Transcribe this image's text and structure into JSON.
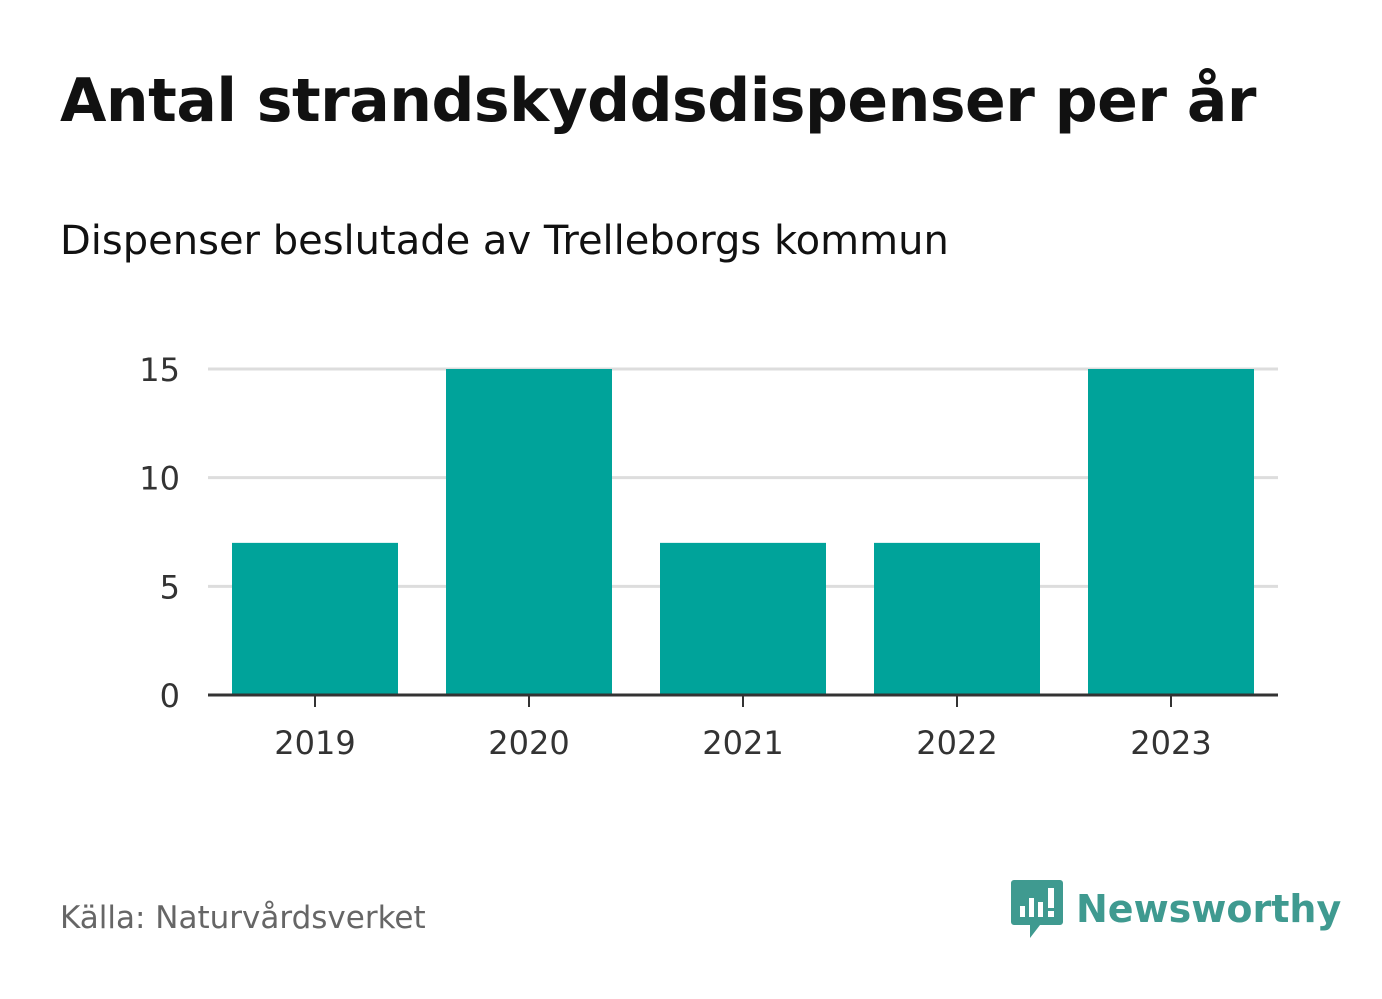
{
  "header": {
    "title": "Antal strandskyddsdispenser per år",
    "subtitle": "Dispenser beslutade av Trelleborgs kommun"
  },
  "footer": {
    "source": "Källa: Naturvårdsverket",
    "brand": "Newsworthy"
  },
  "colors": {
    "bar": "#00a39a",
    "grid": "#dddddd",
    "axis": "#333333",
    "brand": "#3f9a90"
  },
  "chart_data": {
    "type": "bar",
    "title": "Antal strandskyddsdispenser per år",
    "subtitle": "Dispenser beslutade av Trelleborgs kommun",
    "categories": [
      "2019",
      "2020",
      "2021",
      "2022",
      "2023"
    ],
    "values": [
      7,
      15,
      7,
      7,
      15
    ],
    "yticks": [
      0,
      5,
      10,
      15
    ],
    "ylim": [
      0,
      15
    ],
    "xlabel": "",
    "ylabel": "",
    "grid": true,
    "legend": "none"
  }
}
